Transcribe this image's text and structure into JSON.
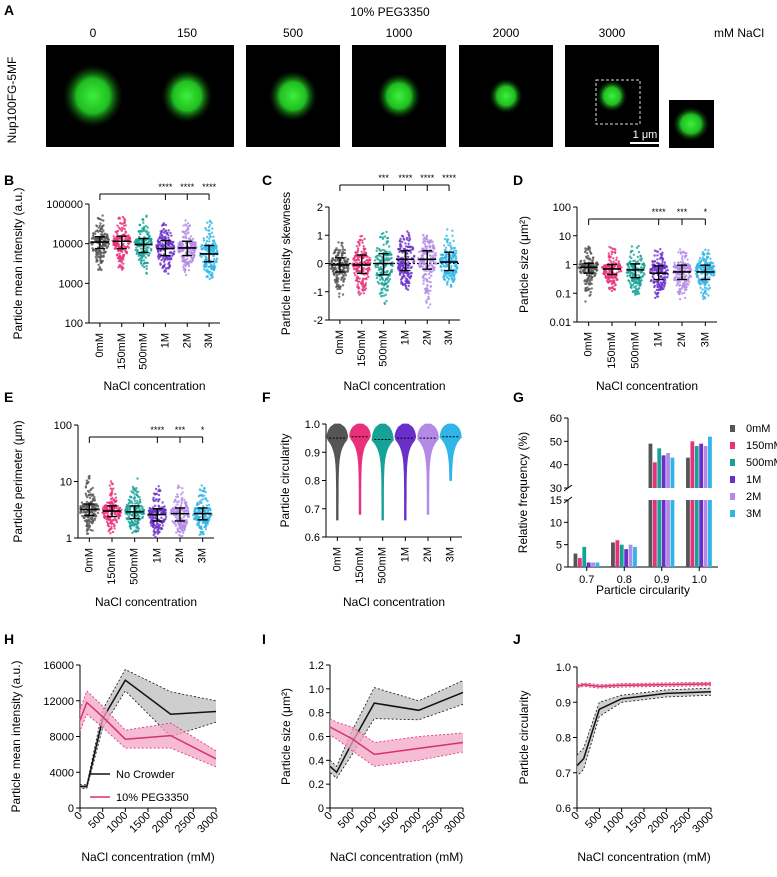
{
  "colors": {
    "c0mM": "#555555",
    "c150mM": "#e8317a",
    "c500mM": "#17a298",
    "c1M": "#6a2fc9",
    "c2M": "#b38ae6",
    "c3M": "#2fb5e8",
    "noCrowder": "#111111",
    "peg": "#d8306f",
    "particle": "#2fd12f"
  },
  "panelA": {
    "letter": "A",
    "title": "10% PEG3350",
    "row_label": "Nup100FG-5MF",
    "concs": [
      "0",
      "150",
      "500",
      "1000",
      "2000",
      "3000"
    ],
    "unit": "mM NaCl",
    "scale": "1 μm",
    "particle_sizes": [
      1.0,
      0.85,
      0.8,
      0.72,
      0.55,
      0.5
    ]
  },
  "groups": [
    "0mM",
    "150mM",
    "500mM",
    "1M",
    "2M",
    "3M"
  ],
  "xlabel_conc": "NaCl concentration",
  "panelB": {
    "letter": "B",
    "ylabel": "Particle mean intensity (a.u.)",
    "yticks": [
      "100",
      "1000",
      "10000",
      "100000"
    ],
    "medians": [
      11000,
      11500,
      9500,
      7500,
      7800,
      5500
    ],
    "q1": [
      7500,
      7500,
      6000,
      5000,
      5000,
      3500
    ],
    "q3": [
      15000,
      15500,
      13500,
      12000,
      11500,
      9000
    ],
    "min": [
      1700,
      1800,
      1500,
      1300,
      1300,
      1100
    ],
    "max": [
      55000,
      55000,
      55000,
      40000,
      40000,
      40000
    ],
    "sig": [
      {
        "from": 0,
        "to": 3,
        "label": "****"
      },
      {
        "from": 0,
        "to": 4,
        "label": "****"
      },
      {
        "from": 0,
        "to": 5,
        "label": "****"
      }
    ]
  },
  "panelC": {
    "letter": "C",
    "ylabel": "Particle intensity skewness",
    "yticks": [
      "-2",
      "-1",
      "0",
      "1",
      "2"
    ],
    "medians": [
      -0.05,
      -0.05,
      0.0,
      0.15,
      0.15,
      0.05
    ],
    "q1": [
      -0.3,
      -0.35,
      -0.4,
      -0.25,
      -0.2,
      -0.25
    ],
    "q3": [
      0.2,
      0.3,
      0.35,
      0.45,
      0.45,
      0.4
    ],
    "min": [
      -1.2,
      -1.3,
      -1.5,
      -1.0,
      -1.7,
      -0.9
    ],
    "max": [
      0.9,
      1.1,
      1.2,
      1.2,
      1.3,
      1.3
    ],
    "sig": [
      {
        "from": 0,
        "to": 2,
        "label": "***"
      },
      {
        "from": 0,
        "to": 3,
        "label": "****"
      },
      {
        "from": 0,
        "to": 4,
        "label": "****"
      },
      {
        "from": 0,
        "to": 5,
        "label": "****"
      }
    ]
  },
  "panelD": {
    "letter": "D",
    "ylabel": "Particle size (μm²)",
    "yticks": [
      "0.01",
      "0.1",
      "1",
      "10",
      "100"
    ],
    "medians": [
      0.8,
      0.7,
      0.65,
      0.5,
      0.55,
      0.55
    ],
    "q1": [
      0.5,
      0.45,
      0.35,
      0.3,
      0.3,
      0.3
    ],
    "q3": [
      1.1,
      1.0,
      1.05,
      0.9,
      0.95,
      0.95
    ],
    "min": [
      0.05,
      0.1,
      0.08,
      0.05,
      0.06,
      0.06
    ],
    "max": [
      6,
      6,
      5,
      4,
      4,
      4
    ],
    "sig": [
      {
        "from": 0,
        "to": 3,
        "label": "****"
      },
      {
        "from": 0,
        "to": 4,
        "label": "***"
      },
      {
        "from": 0,
        "to": 5,
        "label": "*"
      }
    ]
  },
  "panelE": {
    "letter": "E",
    "ylabel": "Particle perimeter (μm)",
    "yticks": [
      "1",
      "10",
      "100"
    ],
    "medians": [
      3.2,
      3.0,
      2.9,
      2.6,
      2.7,
      2.7
    ],
    "q1": [
      2.5,
      2.4,
      2.2,
      2.0,
      2.0,
      2.1
    ],
    "q3": [
      4.0,
      3.7,
      3.7,
      3.3,
      3.4,
      3.4
    ],
    "min": [
      1.0,
      1.1,
      1.1,
      1.0,
      1.0,
      1.0
    ],
    "max": [
      15,
      12,
      12,
      10,
      10,
      10
    ],
    "sig": [
      {
        "from": 0,
        "to": 3,
        "label": "****"
      },
      {
        "from": 0,
        "to": 4,
        "label": "***"
      },
      {
        "from": 0,
        "to": 5,
        "label": "*"
      }
    ]
  },
  "panelF": {
    "letter": "F",
    "ylabel": "Particle circularity",
    "yticks": [
      "0.6",
      "0.7",
      "0.8",
      "0.9",
      "1.0"
    ],
    "medians": [
      0.95,
      0.955,
      0.945,
      0.95,
      0.95,
      0.955
    ],
    "min": [
      0.66,
      0.68,
      0.66,
      0.66,
      0.68,
      0.8
    ]
  },
  "panelG": {
    "letter": "G",
    "ylabel": "Relative frequency (%)",
    "xlabel": "Particle circularity",
    "xcats": [
      "0.7",
      "0.8",
      "0.9",
      "1.0"
    ],
    "yticks_low": [
      "0",
      "5",
      "10",
      "15"
    ],
    "yticks_high": [
      "30",
      "40",
      "50",
      "60"
    ],
    "values": [
      [
        3,
        5.5,
        49,
        43
      ],
      [
        2,
        6,
        41,
        50
      ],
      [
        4.5,
        5,
        47,
        48
      ],
      [
        1,
        4,
        44,
        49
      ],
      [
        1,
        5,
        45,
        48
      ],
      [
        1,
        4.5,
        43,
        52
      ]
    ]
  },
  "lineX": [
    0,
    150,
    500,
    1000,
    2000,
    3000
  ],
  "xticks_lines": [
    "0",
    "500",
    "1000",
    "1500",
    "2000",
    "2500",
    "3000"
  ],
  "xlabel_lines": "NaCl concentration (mM)",
  "panelH": {
    "letter": "H",
    "ylabel": "Particle mean intensity (a.u.)",
    "yticks": [
      "0",
      "4000",
      "8000",
      "12000",
      "16000"
    ],
    "legend_nocrowder": "No Crowder",
    "legend_peg": "10% PEG3350",
    "noCrowder": [
      2400,
      2400,
      10000,
      14300,
      10500,
      10800
    ],
    "noCrowder_err": [
      200,
      200,
      1000,
      1200,
      2500,
      1200
    ],
    "peg": [
      9800,
      11800,
      10200,
      7700,
      8100,
      5500
    ],
    "peg_err": [
      1200,
      1300,
      1200,
      1000,
      1400,
      900
    ]
  },
  "panelI": {
    "letter": "I",
    "ylabel": "Particle size (μm²)",
    "yticks": [
      "0",
      "0.2",
      "0.4",
      "0.6",
      "0.8",
      "1.0",
      "1.2"
    ],
    "noCrowder": [
      0.35,
      0.3,
      0.55,
      0.88,
      0.82,
      0.97
    ],
    "noCrowder_err": [
      0.05,
      0.05,
      0.1,
      0.13,
      0.08,
      0.1
    ],
    "peg": [
      0.68,
      0.65,
      0.58,
      0.45,
      0.5,
      0.55
    ],
    "peg_err": [
      0.07,
      0.07,
      0.1,
      0.1,
      0.1,
      0.08
    ]
  },
  "panelJ": {
    "letter": "J",
    "ylabel": "Particle circularity",
    "yticks": [
      "0.6",
      "0.7",
      "0.8",
      "0.9",
      "1.0"
    ],
    "noCrowder": [
      0.72,
      0.74,
      0.88,
      0.91,
      0.925,
      0.93
    ],
    "noCrowder_err": [
      0.03,
      0.03,
      0.02,
      0.01,
      0.01,
      0.01
    ],
    "peg": [
      0.945,
      0.95,
      0.945,
      0.948,
      0.95,
      0.952
    ],
    "peg_err": [
      0.005,
      0.005,
      0.005,
      0.005,
      0.005,
      0.005
    ]
  }
}
